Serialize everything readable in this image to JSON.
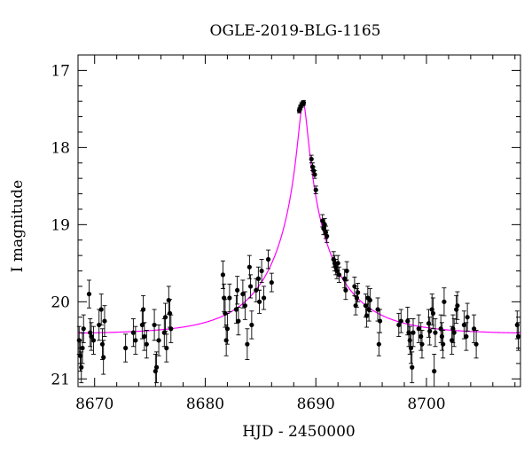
{
  "chart_data": {
    "type": "scatter",
    "title": "OGLE-2019-BLG-1165",
    "xlabel": "HJD - 2450000",
    "ylabel": "I magnitude",
    "xlim": [
      8668.5,
      8708.5
    ],
    "ylim": [
      21.1,
      16.8
    ],
    "y_inverted": true,
    "x_ticks": [
      8670,
      8680,
      8690,
      8700
    ],
    "y_ticks": [
      17,
      18,
      19,
      20,
      21
    ],
    "grid": false,
    "colors": {
      "data": "#000000",
      "model": "#ff00ff"
    },
    "series": [
      {
        "kind": "points_with_errorbars",
        "points": [
          [
            8668.6,
            20.5,
            0.18
          ],
          [
            8668.7,
            20.7,
            0.2
          ],
          [
            8668.8,
            20.85,
            0.2
          ],
          [
            8668.9,
            20.6,
            0.2
          ],
          [
            8669.0,
            20.35,
            0.18
          ],
          [
            8669.5,
            19.9,
            0.18
          ],
          [
            8669.6,
            20.4,
            0.18
          ],
          [
            8669.7,
            20.45,
            0.18
          ],
          [
            8669.9,
            20.5,
            0.18
          ],
          [
            8670.4,
            20.3,
            0.2
          ],
          [
            8670.6,
            20.1,
            0.2
          ],
          [
            8670.7,
            20.55,
            0.2
          ],
          [
            8670.8,
            20.72,
            0.22
          ],
          [
            8670.9,
            20.25,
            0.2
          ],
          [
            8672.8,
            20.6,
            0.18
          ],
          [
            8673.5,
            20.4,
            0.18
          ],
          [
            8673.7,
            20.5,
            0.18
          ],
          [
            8674.3,
            20.3,
            0.18
          ],
          [
            8674.4,
            20.1,
            0.18
          ],
          [
            8674.5,
            20.45,
            0.18
          ],
          [
            8674.7,
            20.55,
            0.18
          ],
          [
            8675.4,
            20.3,
            0.2
          ],
          [
            8675.5,
            20.9,
            0.22
          ],
          [
            8675.6,
            20.85,
            0.2
          ],
          [
            8675.8,
            20.5,
            0.2
          ],
          [
            8676.3,
            20.4,
            0.18
          ],
          [
            8676.4,
            20.2,
            0.18
          ],
          [
            8676.5,
            20.6,
            0.18
          ],
          [
            8676.7,
            19.98,
            0.18
          ],
          [
            8676.8,
            20.15,
            0.18
          ],
          [
            8676.9,
            20.35,
            0.18
          ],
          [
            8681.6,
            19.65,
            0.18
          ],
          [
            8681.7,
            19.95,
            0.18
          ],
          [
            8681.8,
            20.15,
            0.18
          ],
          [
            8681.9,
            20.5,
            0.2
          ],
          [
            8682.0,
            20.35,
            0.2
          ],
          [
            8682.2,
            19.95,
            0.18
          ],
          [
            8682.8,
            20.1,
            0.18
          ],
          [
            8682.9,
            19.85,
            0.18
          ],
          [
            8683.0,
            20.25,
            0.18
          ],
          [
            8683.4,
            19.9,
            0.18
          ],
          [
            8683.6,
            20.05,
            0.18
          ],
          [
            8683.8,
            20.55,
            0.2
          ],
          [
            8684.0,
            19.55,
            0.15
          ],
          [
            8684.1,
            19.8,
            0.15
          ],
          [
            8684.2,
            20.3,
            0.18
          ],
          [
            8684.6,
            19.85,
            0.15
          ],
          [
            8684.8,
            19.7,
            0.15
          ],
          [
            8684.9,
            20.0,
            0.15
          ],
          [
            8685.1,
            19.6,
            0.15
          ],
          [
            8685.3,
            19.95,
            0.15
          ],
          [
            8685.7,
            19.45,
            0.12
          ],
          [
            8686.0,
            19.75,
            0.12
          ],
          [
            8688.5,
            17.52,
            0.03
          ],
          [
            8688.6,
            17.48,
            0.03
          ],
          [
            8688.7,
            17.45,
            0.03
          ],
          [
            8688.8,
            17.43,
            0.03
          ],
          [
            8688.9,
            17.42,
            0.03
          ],
          [
            8689.6,
            18.15,
            0.05
          ],
          [
            8689.7,
            18.25,
            0.05
          ],
          [
            8689.8,
            18.3,
            0.05
          ],
          [
            8689.9,
            18.35,
            0.05
          ],
          [
            8690.0,
            18.55,
            0.05
          ],
          [
            8690.6,
            18.95,
            0.08
          ],
          [
            8690.7,
            19.05,
            0.08
          ],
          [
            8690.8,
            19.0,
            0.08
          ],
          [
            8690.9,
            19.1,
            0.08
          ],
          [
            8691.0,
            19.15,
            0.08
          ],
          [
            8691.6,
            19.45,
            0.1
          ],
          [
            8691.7,
            19.5,
            0.1
          ],
          [
            8691.8,
            19.55,
            0.1
          ],
          [
            8691.9,
            19.6,
            0.1
          ],
          [
            8692.0,
            19.5,
            0.1
          ],
          [
            8692.1,
            19.65,
            0.1
          ],
          [
            8692.6,
            19.7,
            0.12
          ],
          [
            8692.7,
            19.85,
            0.12
          ],
          [
            8692.8,
            19.6,
            0.12
          ],
          [
            8693.5,
            19.8,
            0.12
          ],
          [
            8693.6,
            20.05,
            0.12
          ],
          [
            8693.7,
            19.95,
            0.12
          ],
          [
            8693.8,
            19.88,
            0.12
          ],
          [
            8694.5,
            20.05,
            0.15
          ],
          [
            8694.6,
            20.18,
            0.15
          ],
          [
            8694.7,
            19.95,
            0.15
          ],
          [
            8694.8,
            20.1,
            0.15
          ],
          [
            8694.9,
            19.98,
            0.15
          ],
          [
            8695.6,
            20.1,
            0.15
          ],
          [
            8695.7,
            20.55,
            0.15
          ],
          [
            8695.8,
            20.25,
            0.15
          ],
          [
            8697.5,
            20.3,
            0.15
          ],
          [
            8697.7,
            20.25,
            0.15
          ],
          [
            8698.3,
            20.25,
            0.18
          ],
          [
            8698.4,
            20.4,
            0.18
          ],
          [
            8698.5,
            20.5,
            0.18
          ],
          [
            8698.6,
            20.6,
            0.2
          ],
          [
            8698.7,
            20.85,
            0.2
          ],
          [
            8698.8,
            20.4,
            0.18
          ],
          [
            8699.3,
            20.35,
            0.18
          ],
          [
            8699.5,
            20.45,
            0.18
          ],
          [
            8699.6,
            20.55,
            0.18
          ],
          [
            8700.2,
            20.28,
            0.18
          ],
          [
            8700.3,
            20.38,
            0.18
          ],
          [
            8700.5,
            20.1,
            0.2
          ],
          [
            8700.6,
            20.15,
            0.2
          ],
          [
            8700.7,
            20.9,
            0.22
          ],
          [
            8700.8,
            20.4,
            0.18
          ],
          [
            8701.3,
            20.35,
            0.18
          ],
          [
            8701.4,
            20.45,
            0.18
          ],
          [
            8701.5,
            20.55,
            0.18
          ],
          [
            8701.6,
            20.0,
            0.18
          ],
          [
            8702.3,
            20.5,
            0.18
          ],
          [
            8702.4,
            20.35,
            0.18
          ],
          [
            8702.5,
            20.4,
            0.18
          ],
          [
            8702.7,
            20.1,
            0.18
          ],
          [
            8702.8,
            20.05,
            0.18
          ],
          [
            8703.4,
            20.3,
            0.18
          ],
          [
            8703.6,
            20.45,
            0.18
          ],
          [
            8703.7,
            20.2,
            0.18
          ],
          [
            8704.3,
            20.35,
            0.18
          ],
          [
            8704.5,
            20.55,
            0.18
          ],
          [
            8708.2,
            20.3,
            0.18
          ],
          [
            8708.3,
            20.45,
            0.18
          ]
        ]
      },
      {
        "kind": "model_curve",
        "model": {
          "baseline": 20.42,
          "peak_mag": 17.42,
          "t0": 8688.85,
          "tE": 6.2
        }
      }
    ]
  }
}
